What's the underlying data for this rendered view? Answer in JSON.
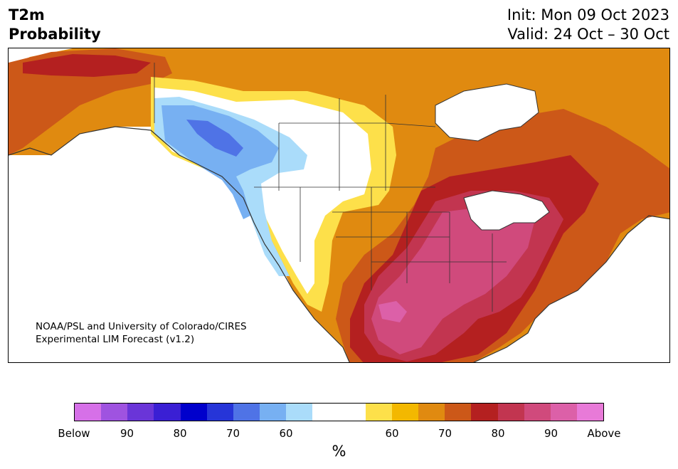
{
  "header": {
    "title_line1": "T2m",
    "title_line2": "Probability",
    "init": "Init: Mon 09 Oct 2023",
    "valid": "Valid: 24 Oct – 30 Oct"
  },
  "map": {
    "credit_line1": "NOAA/PSL and University of Colorado/CIRES",
    "credit_line2": "Experimental LIM Forecast (v1.2)",
    "region": "North America",
    "land_fill": "#ffffff",
    "water_fill": "#ffffff",
    "coastline_color": "#333333",
    "border_color": "#333333"
  },
  "colorbar": {
    "colors": [
      "#d670e8",
      "#9f53e0",
      "#6a35d8",
      "#3a1fd4",
      "#0000cc",
      "#2635d8",
      "#4f73e6",
      "#77b0f2",
      "#aadcfa",
      "#ffffff",
      "#ffffff",
      "#fde04a",
      "#f3b800",
      "#e08a10",
      "#cc5818",
      "#b42020",
      "#c23550",
      "#d04a7c",
      "#dc60a8",
      "#e87ad8"
    ],
    "tick_labels": [
      "Below",
      "90",
      "80",
      "70",
      "60",
      "60",
      "70",
      "80",
      "90",
      "Above"
    ],
    "unit": "%"
  }
}
